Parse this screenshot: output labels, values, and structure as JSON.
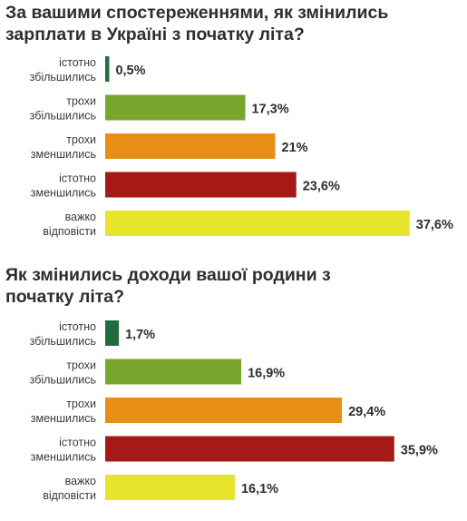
{
  "chart_data": [
    {
      "type": "bar",
      "orientation": "horizontal",
      "title": "За вашими спостереженнями, як змінились зарплати в Україні з початку літа?",
      "categories": [
        [
          "істотно",
          "збільшились"
        ],
        [
          "трохи",
          "збільшились"
        ],
        [
          "трохи",
          "зменшились"
        ],
        [
          "істотно",
          "зменшились"
        ],
        [
          "важко",
          "відповісти"
        ]
      ],
      "values": [
        0.5,
        17.3,
        21,
        23.6,
        37.6
      ],
      "value_labels": [
        "0,5%",
        "17,3%",
        "21%",
        "23,6%",
        "37,6%"
      ],
      "colors": [
        "#1f6e3f",
        "#79a52e",
        "#e88d16",
        "#a51a17",
        "#e5e52b"
      ],
      "unit": "%"
    },
    {
      "type": "bar",
      "orientation": "horizontal",
      "title": "Як змінились доходи вашої родини з початку літа?",
      "categories": [
        [
          "істотно",
          "збільшились"
        ],
        [
          "трохи",
          "збільшились"
        ],
        [
          "трохи",
          "зменшились"
        ],
        [
          "істотно",
          "зменшились"
        ],
        [
          "важко",
          "відповісти"
        ]
      ],
      "values": [
        1.7,
        16.9,
        29.4,
        35.9,
        16.1
      ],
      "value_labels": [
        "1,7%",
        "16,9%",
        "29,4%",
        "35,9%",
        "16,1%"
      ],
      "colors": [
        "#1f6e3f",
        "#79a52e",
        "#e88d16",
        "#a51a17",
        "#e5e52b"
      ],
      "unit": "%"
    }
  ]
}
